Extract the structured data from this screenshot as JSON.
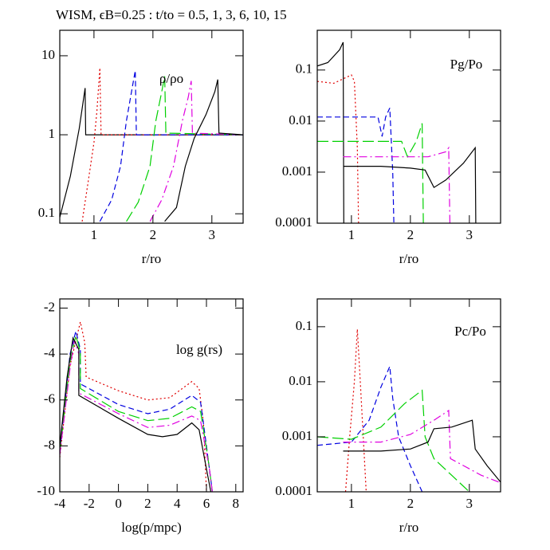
{
  "title": "WISM, ϵB=0.25 : t/to = 0.5, 1, 3, 6, 10, 15",
  "chart_data": [
    {
      "type": "line",
      "label": "ρ/ρo",
      "xlabel": "r/ro",
      "ylog": true,
      "xlim": [
        0.42,
        3.53
      ],
      "xticks": [
        1,
        2,
        3
      ],
      "ylim": [
        0.076,
        21
      ],
      "yticks": [
        0.1,
        1,
        10
      ],
      "series": [
        {
          "color": "#000000",
          "dash": "solid",
          "x": [
            0.42,
            0.6,
            0.75,
            0.85,
            0.86,
            1.5,
            3.53
          ],
          "values": [
            0.09,
            0.3,
            1.2,
            3.9,
            1.0,
            1.0,
            1.0
          ]
        },
        {
          "color": "#e00000",
          "dash": "dotted",
          "x": [
            0.8,
            0.9,
            1.0,
            1.05,
            1.1,
            1.12,
            3.53
          ],
          "values": [
            0.08,
            0.25,
            0.8,
            2,
            7,
            1,
            1
          ]
        },
        {
          "color": "#0000e0",
          "dash": "dashed",
          "x": [
            1.1,
            1.3,
            1.45,
            1.55,
            1.65,
            1.7,
            1.72,
            3.53
          ],
          "values": [
            0.08,
            0.15,
            0.4,
            1.5,
            4,
            6.5,
            1,
            1
          ]
        },
        {
          "color": "#00d000",
          "dash": "longdash",
          "x": [
            1.55,
            1.75,
            1.95,
            2.05,
            2.15,
            2.2,
            2.22,
            3.53
          ],
          "values": [
            0.08,
            0.14,
            0.4,
            1.5,
            3.5,
            5.5,
            1.05,
            1
          ]
        },
        {
          "color": "#e000e0",
          "dash": "dashdot",
          "x": [
            1.95,
            2.15,
            2.35,
            2.5,
            2.6,
            2.65,
            2.67,
            3.53
          ],
          "values": [
            0.08,
            0.15,
            0.4,
            1.5,
            3,
            4.8,
            1.05,
            1
          ]
        },
        {
          "color": "#000000",
          "dash": "solid",
          "x": [
            2.2,
            2.4,
            2.55,
            2.7,
            2.9,
            3.05,
            3.1,
            3.12,
            3.53
          ],
          "values": [
            0.08,
            0.12,
            0.4,
            0.9,
            1.8,
            3.5,
            5,
            1.05,
            1
          ]
        }
      ]
    },
    {
      "type": "line",
      "label": "Pg/Po",
      "xlabel": "r/ro",
      "ylog": true,
      "xlim": [
        0.42,
        3.53
      ],
      "xticks": [
        1,
        2,
        3
      ],
      "ylim": [
        0.0001,
        0.6
      ],
      "yticks": [
        0.0001,
        0.001,
        0.01,
        0.1
      ],
      "series": [
        {
          "color": "#000000",
          "dash": "solid",
          "x": [
            0.42,
            0.6,
            0.8,
            0.86,
            0.87
          ],
          "values": [
            0.12,
            0.14,
            0.25,
            0.35,
            0.0001
          ]
        },
        {
          "color": "#e00000",
          "dash": "dotted",
          "x": [
            0.42,
            0.7,
            1.0,
            1.05,
            1.1,
            1.12
          ],
          "values": [
            0.06,
            0.055,
            0.08,
            0.06,
            0.003,
            0.0001
          ]
        },
        {
          "color": "#0000e0",
          "dash": "dashed",
          "x": [
            0.42,
            1.0,
            1.45,
            1.52,
            1.58,
            1.65,
            1.7,
            1.72
          ],
          "values": [
            0.012,
            0.012,
            0.012,
            0.005,
            0.012,
            0.018,
            0.001,
            0.0001
          ]
        },
        {
          "color": "#00d000",
          "dash": "longdash",
          "x": [
            0.42,
            1.5,
            1.85,
            1.95,
            2.1,
            2.2,
            2.22
          ],
          "values": [
            0.004,
            0.004,
            0.004,
            0.002,
            0.004,
            0.009,
            0.0001
          ]
        },
        {
          "color": "#e000e0",
          "dash": "dashdot",
          "x": [
            0.86,
            1.5,
            2.0,
            2.1,
            2.3,
            2.6,
            2.65,
            2.67
          ],
          "values": [
            0.002,
            0.002,
            0.002,
            0.002,
            0.002,
            0.0025,
            0.003,
            0.0001
          ]
        },
        {
          "color": "#000000",
          "dash": "solid",
          "x": [
            0.86,
            1.0,
            1.5,
            2.0,
            2.25,
            2.4,
            2.6,
            2.9,
            3.1,
            3.11
          ],
          "values": [
            0.0013,
            0.0013,
            0.0013,
            0.0012,
            0.0011,
            0.0005,
            0.0007,
            0.0015,
            0.003,
            0.0001
          ]
        }
      ]
    },
    {
      "type": "line",
      "label": "log g(rs)",
      "xlabel": "log(p/mpc)",
      "ylog": false,
      "xlim": [
        -4,
        8.5
      ],
      "xticks": [
        -4,
        -2,
        0,
        2,
        4,
        6,
        8
      ],
      "ylim": [
        -10,
        -1.6
      ],
      "yticks": [
        -10,
        -8,
        -6,
        -4,
        -2
      ],
      "series": [
        {
          "color": "#e00000",
          "dash": "dotted",
          "x": [
            -4,
            -3.3,
            -2.6,
            -2.3,
            -2.2,
            0,
            2,
            3.5,
            5,
            5.5,
            5.8,
            6.0
          ],
          "values": [
            -8.5,
            -4.5,
            -2.6,
            -3.5,
            -5.0,
            -5.6,
            -6.0,
            -5.9,
            -5.2,
            -5.5,
            -7,
            -10
          ]
        },
        {
          "color": "#0000e0",
          "dash": "dashed",
          "x": [
            -4,
            -3.3,
            -2.9,
            -2.6,
            -2.6,
            0,
            2,
            3.5,
            5,
            5.6,
            6,
            6.4
          ],
          "values": [
            -8.2,
            -4,
            -3.0,
            -3.8,
            -5.3,
            -6.2,
            -6.6,
            -6.4,
            -5.8,
            -6.1,
            -8,
            -10
          ]
        },
        {
          "color": "#00d000",
          "dash": "longdash",
          "x": [
            -4,
            -3.3,
            -2.9,
            -2.6,
            -2.6,
            0,
            2,
            3.5,
            5,
            5.6,
            6.1,
            6.4
          ],
          "values": [
            -8.3,
            -4.3,
            -3.2,
            -3.9,
            -5.5,
            -6.5,
            -6.9,
            -6.8,
            -6.3,
            -6.5,
            -8.5,
            -10
          ]
        },
        {
          "color": "#e000e0",
          "dash": "dashdot",
          "x": [
            -4,
            -3.3,
            -3.0,
            -2.7,
            -2.7,
            0,
            2,
            3.5,
            5,
            5.6,
            6.2,
            6.4
          ],
          "values": [
            -8.4,
            -4.6,
            -3.4,
            -4.0,
            -5.7,
            -6.6,
            -7.2,
            -7.1,
            -6.7,
            -6.9,
            -9,
            -10
          ]
        },
        {
          "color": "#000000",
          "dash": "solid",
          "x": [
            -4,
            -3.5,
            -3.1,
            -2.7,
            -2.7,
            0,
            2,
            3,
            4,
            5,
            5.5,
            6,
            6.3
          ],
          "values": [
            -8,
            -5,
            -3.3,
            -3.8,
            -5.8,
            -6.8,
            -7.5,
            -7.6,
            -7.5,
            -7.0,
            -7.3,
            -9,
            -10
          ]
        }
      ]
    },
    {
      "type": "line",
      "label": "Pc/Po",
      "xlabel": "r/ro",
      "ylog": true,
      "xlim": [
        0.42,
        3.53
      ],
      "xticks": [
        1,
        2,
        3
      ],
      "ylim": [
        0.0001,
        0.32
      ],
      "yticks": [
        0.0001,
        0.001,
        0.01,
        0.1
      ],
      "series": [
        {
          "color": "#e00000",
          "dash": "dotted",
          "x": [
            0.9,
            0.97,
            1.05,
            1.1,
            1.15,
            1.2,
            1.25
          ],
          "values": [
            0.0001,
            0.001,
            0.01,
            0.09,
            0.01,
            0.001,
            0.0001
          ]
        },
        {
          "color": "#0000e0",
          "dash": "dashed",
          "x": [
            0.42,
            1.0,
            1.3,
            1.5,
            1.65,
            1.7,
            1.8,
            2.0,
            2.2
          ],
          "values": [
            0.0007,
            0.0008,
            0.002,
            0.008,
            0.019,
            0.005,
            0.001,
            0.0003,
            0.0001
          ]
        },
        {
          "color": "#00d000",
          "dash": "longdash",
          "x": [
            0.42,
            1.0,
            1.5,
            1.9,
            2.2,
            2.25,
            2.4,
            2.7,
            3.0
          ],
          "values": [
            0.001,
            0.0009,
            0.0015,
            0.004,
            0.007,
            0.001,
            0.0004,
            0.0002,
            0.0001
          ]
        },
        {
          "color": "#e000e0",
          "dash": "dashdot",
          "x": [
            0.86,
            1.5,
            2.0,
            2.4,
            2.65,
            2.68,
            2.9,
            3.2,
            3.5
          ],
          "values": [
            0.0008,
            0.0008,
            0.0011,
            0.002,
            0.003,
            0.0004,
            0.0003,
            0.0002,
            0.00015
          ]
        },
        {
          "color": "#000000",
          "dash": "solid",
          "x": [
            0.86,
            1.5,
            2.0,
            2.3,
            2.4,
            2.7,
            3.05,
            3.1,
            3.3,
            3.53
          ],
          "values": [
            0.00055,
            0.00055,
            0.0006,
            0.0008,
            0.0014,
            0.0015,
            0.002,
            0.0006,
            0.0003,
            0.00015
          ]
        }
      ]
    }
  ]
}
